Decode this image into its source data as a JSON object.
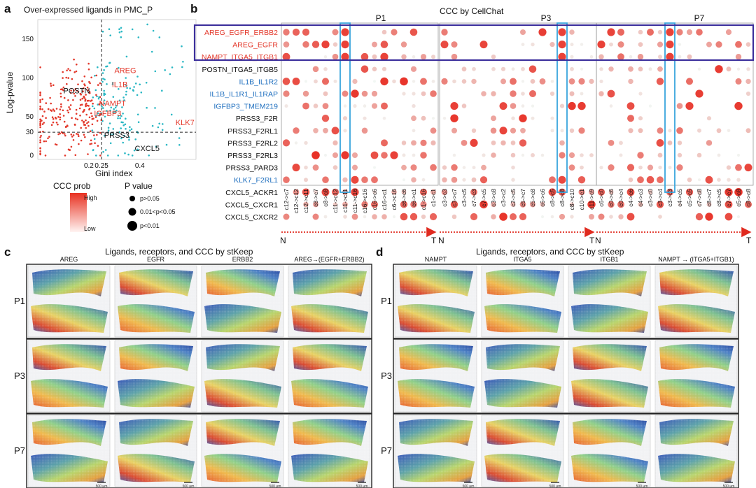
{
  "colors": {
    "red": "#e3382b",
    "blue": "#1f6fbf",
    "teal": "#2bb8c4",
    "purple": "#3c2f9c",
    "cyan": "#38a6dc",
    "arrow": "#e02a1f"
  },
  "panels": {
    "a": "a",
    "b": "b",
    "c": "c",
    "d": "d"
  },
  "chart_data": [
    {
      "type": "scatter",
      "title": "Over-expressed ligands in PMC_P",
      "xlabel": "Gini index",
      "ylabel": "Log-pvalue",
      "xticks": [
        "0.2",
        "0.25",
        "0.4"
      ],
      "yticks": [
        "0",
        "30",
        "50",
        "100",
        "150"
      ],
      "xlim": [
        0,
        0.62
      ],
      "ylim": [
        -5,
        175
      ],
      "thresholds": {
        "x": 0.25,
        "y": 30
      },
      "labels": [
        {
          "text": "AREG",
          "x": 0.3,
          "y": 106,
          "color": "red"
        },
        {
          "text": "IL1B",
          "x": 0.29,
          "y": 88,
          "color": "red"
        },
        {
          "text": "POSTN",
          "x": 0.1,
          "y": 80,
          "color": "black"
        },
        {
          "text": "NAMPT",
          "x": 0.24,
          "y": 64,
          "color": "red"
        },
        {
          "text": "IGFBP3",
          "x": 0.22,
          "y": 51,
          "color": "red"
        },
        {
          "text": "KLK7",
          "x": 0.54,
          "y": 39,
          "color": "red"
        },
        {
          "text": "PRSS3",
          "x": 0.26,
          "y": 23,
          "color": "black"
        },
        {
          "text": "CXCL5",
          "x": 0.38,
          "y": 6,
          "color": "black"
        }
      ]
    },
    {
      "type": "dot",
      "title": "CCC by CellChat",
      "groups": [
        "P1",
        "P3",
        "P7"
      ],
      "rows": [
        {
          "label": "AREG_EGFR_ERBB2",
          "color": "red"
        },
        {
          "label": "AREG_EGFR",
          "color": "red"
        },
        {
          "label": "NAMPT_ITGA5_ITGB1",
          "color": "red"
        },
        {
          "label": "POSTN_ITGA5_ITGB5",
          "color": "black"
        },
        {
          "label": "IL1B_IL1R2",
          "color": "blue"
        },
        {
          "label": "IL1B_IL1R1_IL1RAP",
          "color": "blue"
        },
        {
          "label": "IGFBP3_TMEM219",
          "color": "blue"
        },
        {
          "label": "PRSS3_F2R",
          "color": "black"
        },
        {
          "label": "PRSS3_F2RL1",
          "color": "black"
        },
        {
          "label": "PRSS3_F2RL2",
          "color": "black"
        },
        {
          "label": "PRSS3_F2RL3",
          "color": "black"
        },
        {
          "label": "PRSS3_PARD3",
          "color": "black"
        },
        {
          "label": "KLK7_F2RL1",
          "color": "blue"
        },
        {
          "label": "CXCL5_ACKR1",
          "color": "black"
        },
        {
          "label": "CXCL5_CXCR1",
          "color": "black"
        },
        {
          "label": "CXCL5_CXCR2",
          "color": "black"
        }
      ],
      "columns": [
        [
          "c12->c7",
          "c12->c12",
          "c12->c11",
          "c8->c7",
          "c8->c8",
          "c11->c12",
          "c11->c11",
          "c11->c16",
          "c16->c16",
          "c16->c6",
          "c16->c1",
          "c6->c16",
          "c6->c6",
          "c6->c1",
          "c1->c16",
          "c1->c1"
        ],
        [
          "c3->c3",
          "c3->c7",
          "c3->c5",
          "c7->c3",
          "c7->c5",
          "c3->c8",
          "c3->c2",
          "c2->c5",
          "c5->c7",
          "c5->c8",
          "c6->c6",
          "c8->c5",
          "c8->c8",
          "c8->c10",
          "c10->c1",
          "c11->c9"
        ],
        [
          "c6->c0",
          "c0->c6",
          "c0->c4",
          "c4->c6",
          "c4->c3",
          "c3->c0",
          "c3->c4",
          "c3->c3",
          "c4->c5",
          "c5->c5",
          "c7->c8",
          "c8->c7",
          "c8->c5",
          "c7->c7",
          "c5->c8",
          "c8->c8"
        ]
      ],
      "highlight_cols": [
        6,
        12,
        7
      ],
      "axis_start": "N",
      "axis_end": "T",
      "legend": {
        "color_title": "CCC prob",
        "color_high": "High",
        "color_low": "Low",
        "size_title": "P value",
        "sizes": [
          "p>0.05",
          "0.01<p<0.05",
          "p<0.01"
        ]
      }
    }
  ],
  "panel_c": {
    "title": "Ligands, receptors, and CCC by stKeep",
    "columns": [
      "AREG",
      "EGFR",
      "ERBB2",
      "AREG→(EGFR+ERBB2)"
    ],
    "rows": [
      "P1",
      "P3",
      "P7"
    ]
  },
  "panel_d": {
    "title": "Ligands, receptors, and CCC by stKeep",
    "columns": [
      "NAMPT",
      "ITGA5",
      "ITGB1",
      "NAMPT → (ITGA5+ITGB1)"
    ],
    "rows": [
      "P1",
      "P3",
      "P7"
    ]
  },
  "scalebar": "500 μm"
}
